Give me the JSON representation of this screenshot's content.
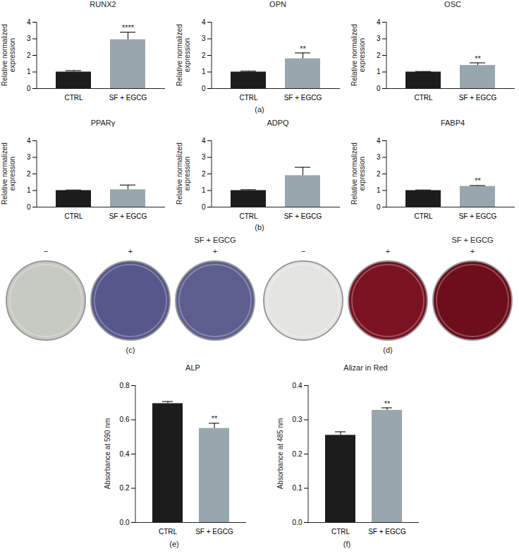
{
  "chart_data": [
    {
      "type": "bar",
      "title": "RUNX2",
      "ylabel": "Relative normalized expression",
      "categories": [
        "CTRL",
        "SF + EGCG"
      ],
      "values": [
        1.0,
        2.95
      ],
      "errors": [
        0.08,
        0.45
      ],
      "significance": [
        null,
        "****"
      ],
      "colors": [
        "#1c1c1c",
        "#98a7ae"
      ],
      "ylim": [
        0,
        4
      ],
      "yticks": [
        0,
        1,
        2,
        3,
        4
      ]
    },
    {
      "type": "bar",
      "title": "OPN",
      "ylabel": "Relative normalized expression",
      "categories": [
        "CTRL",
        "SF + EGCG"
      ],
      "values": [
        1.0,
        1.8
      ],
      "errors": [
        0.05,
        0.35
      ],
      "significance": [
        null,
        "**"
      ],
      "colors": [
        "#1c1c1c",
        "#98a7ae"
      ],
      "ylim": [
        0,
        4
      ],
      "yticks": [
        0,
        1,
        2,
        3,
        4
      ]
    },
    {
      "type": "bar",
      "title": "OSC",
      "ylabel": "Relative normalized expression",
      "categories": [
        "CTRL",
        "SF + EGCG"
      ],
      "values": [
        1.0,
        1.4
      ],
      "errors": [
        0.03,
        0.15
      ],
      "significance": [
        null,
        "**"
      ],
      "colors": [
        "#1c1c1c",
        "#98a7ae"
      ],
      "ylim": [
        0,
        4
      ],
      "yticks": [
        0,
        1,
        2,
        3,
        4
      ]
    },
    {
      "type": "bar",
      "title": "PPARγ",
      "ylabel": "Relative normalized expression",
      "categories": [
        "CTRL",
        "SF + EGCG"
      ],
      "values": [
        1.0,
        1.05
      ],
      "errors": [
        0.03,
        0.28
      ],
      "significance": [
        null,
        null
      ],
      "colors": [
        "#1c1c1c",
        "#98a7ae"
      ],
      "ylim": [
        0,
        4
      ],
      "yticks": [
        0,
        1,
        2,
        3,
        4
      ]
    },
    {
      "type": "bar",
      "title": "ADPQ",
      "ylabel": "Relative normalized expression",
      "categories": [
        "CTRL",
        "SF + EGCG"
      ],
      "values": [
        1.0,
        1.9
      ],
      "errors": [
        0.05,
        0.5
      ],
      "significance": [
        null,
        null
      ],
      "colors": [
        "#1c1c1c",
        "#98a7ae"
      ],
      "ylim": [
        0,
        4
      ],
      "yticks": [
        0,
        1,
        2,
        3,
        4
      ]
    },
    {
      "type": "bar",
      "title": "FABP4",
      "ylabel": "Relative normalized expression",
      "categories": [
        "CTRL",
        "SF + EGCG"
      ],
      "values": [
        1.0,
        1.25
      ],
      "errors": [
        0.03,
        0.05
      ],
      "significance": [
        null,
        "**"
      ],
      "colors": [
        "#1c1c1c",
        "#98a7ae"
      ],
      "ylim": [
        0,
        4
      ],
      "yticks": [
        0,
        1,
        2,
        3,
        4
      ]
    },
    {
      "type": "bar",
      "title": "ALP",
      "ylabel": "Absorbance at 590 nm",
      "categories": [
        "CTRL",
        "SF + EGCG"
      ],
      "values": [
        0.695,
        0.55
      ],
      "errors": [
        0.012,
        0.03
      ],
      "significance": [
        null,
        "**"
      ],
      "colors": [
        "#1c1c1c",
        "#98a7ae"
      ],
      "ylim": [
        0,
        0.8
      ],
      "yticks": [
        {
          "value": 0,
          "label": "0.0"
        },
        0.2,
        0.4,
        0.6,
        0.8
      ]
    },
    {
      "type": "bar",
      "title": "Alizar in Red",
      "ylabel": "Absorbance at 485 nm",
      "categories": [
        "CTRL",
        "SF + EGCG"
      ],
      "values": [
        0.255,
        0.328
      ],
      "errors": [
        0.01,
        0.007
      ],
      "significance": [
        null,
        "**"
      ],
      "colors": [
        "#1c1c1c",
        "#98a7ae"
      ],
      "ylim": [
        0,
        0.4
      ],
      "yticks": [
        {
          "value": 0,
          "label": "0.0"
        },
        0.1,
        0.2,
        0.3,
        0.4
      ]
    }
  ],
  "images": [
    {
      "signs": [
        "−",
        "+",
        "+"
      ],
      "group_label": "SF + EGCG",
      "colors": [
        "#c6cac3",
        "#56578a",
        "#5d5e8e"
      ]
    },
    {
      "signs": [
        "−",
        "+",
        "+"
      ],
      "group_label": "SF + EGCG",
      "colors": [
        "#e4e4e1",
        "#7a1222",
        "#6c0e1b"
      ]
    }
  ],
  "panel_labels": [
    "(a)",
    "(b)",
    "(c)",
    "(d)",
    "(e)",
    "(f)"
  ]
}
